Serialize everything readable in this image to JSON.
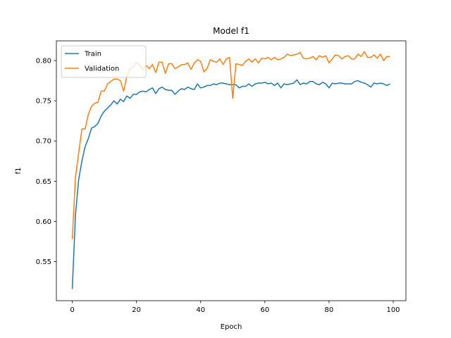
{
  "chart_data": {
    "type": "line",
    "title": "Model f1",
    "xlabel": "Epoch",
    "ylabel": "f1",
    "xlim": [
      -4.95,
      103.95
    ],
    "ylim": [
      0.5015,
      0.8245
    ],
    "xticks": [
      0,
      20,
      40,
      60,
      80,
      100
    ],
    "yticks": [
      0.55,
      0.6,
      0.65,
      0.7,
      0.75,
      0.8
    ],
    "ytick_labels": [
      "0.55",
      "0.60",
      "0.65",
      "0.70",
      "0.75",
      "0.80"
    ],
    "grid": false,
    "legend_position": "top-left",
    "series": [
      {
        "name": "Train",
        "color": "#1f77b4",
        "x": [
          0,
          1,
          2,
          3,
          4,
          5,
          6,
          7,
          8,
          9,
          10,
          11,
          12,
          13,
          14,
          15,
          16,
          17,
          18,
          19,
          20,
          21,
          22,
          23,
          24,
          25,
          26,
          27,
          28,
          29,
          30,
          31,
          32,
          33,
          34,
          35,
          36,
          37,
          38,
          39,
          40,
          41,
          42,
          43,
          44,
          45,
          46,
          47,
          48,
          49,
          50,
          51,
          52,
          53,
          54,
          55,
          56,
          57,
          58,
          59,
          60,
          61,
          62,
          63,
          64,
          65,
          66,
          67,
          68,
          69,
          70,
          71,
          72,
          73,
          74,
          75,
          76,
          77,
          78,
          79,
          80,
          81,
          82,
          83,
          84,
          85,
          86,
          87,
          88,
          89,
          90,
          91,
          92,
          93,
          94,
          95,
          96,
          97,
          98,
          99
        ],
        "values": [
          0.516,
          0.608,
          0.652,
          0.675,
          0.693,
          0.703,
          0.716,
          0.718,
          0.722,
          0.731,
          0.737,
          0.741,
          0.745,
          0.75,
          0.746,
          0.752,
          0.749,
          0.756,
          0.753,
          0.758,
          0.758,
          0.761,
          0.762,
          0.761,
          0.764,
          0.766,
          0.759,
          0.765,
          0.767,
          0.764,
          0.763,
          0.763,
          0.758,
          0.762,
          0.765,
          0.764,
          0.767,
          0.765,
          0.764,
          0.771,
          0.766,
          0.767,
          0.769,
          0.769,
          0.771,
          0.77,
          0.772,
          0.772,
          0.771,
          0.77,
          0.77,
          0.77,
          0.766,
          0.768,
          0.768,
          0.771,
          0.768,
          0.771,
          0.772,
          0.772,
          0.773,
          0.771,
          0.772,
          0.769,
          0.772,
          0.766,
          0.771,
          0.77,
          0.771,
          0.772,
          0.776,
          0.77,
          0.772,
          0.771,
          0.774,
          0.774,
          0.771,
          0.77,
          0.773,
          0.771,
          0.766,
          0.772,
          0.771,
          0.772,
          0.772,
          0.771,
          0.771,
          0.771,
          0.774,
          0.775,
          0.773,
          0.772,
          0.77,
          0.767,
          0.772,
          0.771,
          0.772,
          0.771,
          0.769,
          0.771
        ]
      },
      {
        "name": "Validation",
        "color": "#ff7f0e",
        "x": [
          0,
          1,
          2,
          3,
          4,
          5,
          6,
          7,
          8,
          9,
          10,
          11,
          12,
          13,
          14,
          15,
          16,
          17,
          18,
          19,
          20,
          21,
          22,
          23,
          24,
          25,
          26,
          27,
          28,
          29,
          30,
          31,
          32,
          33,
          34,
          35,
          36,
          37,
          38,
          39,
          40,
          41,
          42,
          43,
          44,
          45,
          46,
          47,
          48,
          49,
          50,
          51,
          52,
          53,
          54,
          55,
          56,
          57,
          58,
          59,
          60,
          61,
          62,
          63,
          64,
          65,
          66,
          67,
          68,
          69,
          70,
          71,
          72,
          73,
          74,
          75,
          76,
          77,
          78,
          79,
          80,
          81,
          82,
          83,
          84,
          85,
          86,
          87,
          88,
          89,
          90,
          91,
          92,
          93,
          94,
          95,
          96,
          97,
          98,
          99
        ],
        "values": [
          0.578,
          0.655,
          0.685,
          0.715,
          0.715,
          0.733,
          0.743,
          0.747,
          0.748,
          0.762,
          0.762,
          0.771,
          0.774,
          0.777,
          0.777,
          0.775,
          0.762,
          0.78,
          0.79,
          0.792,
          0.798,
          0.795,
          0.789,
          0.794,
          0.79,
          0.795,
          0.785,
          0.798,
          0.798,
          0.784,
          0.796,
          0.796,
          0.79,
          0.792,
          0.795,
          0.795,
          0.797,
          0.789,
          0.797,
          0.801,
          0.799,
          0.786,
          0.79,
          0.801,
          0.799,
          0.798,
          0.802,
          0.795,
          0.802,
          0.804,
          0.753,
          0.796,
          0.795,
          0.794,
          0.799,
          0.802,
          0.798,
          0.802,
          0.797,
          0.803,
          0.802,
          0.804,
          0.801,
          0.804,
          0.801,
          0.802,
          0.804,
          0.808,
          0.806,
          0.807,
          0.808,
          0.81,
          0.803,
          0.802,
          0.803,
          0.805,
          0.801,
          0.806,
          0.804,
          0.806,
          0.797,
          0.802,
          0.807,
          0.806,
          0.802,
          0.805,
          0.806,
          0.802,
          0.802,
          0.808,
          0.805,
          0.811,
          0.804,
          0.804,
          0.807,
          0.803,
          0.808,
          0.8,
          0.805,
          0.805
        ]
      }
    ]
  }
}
